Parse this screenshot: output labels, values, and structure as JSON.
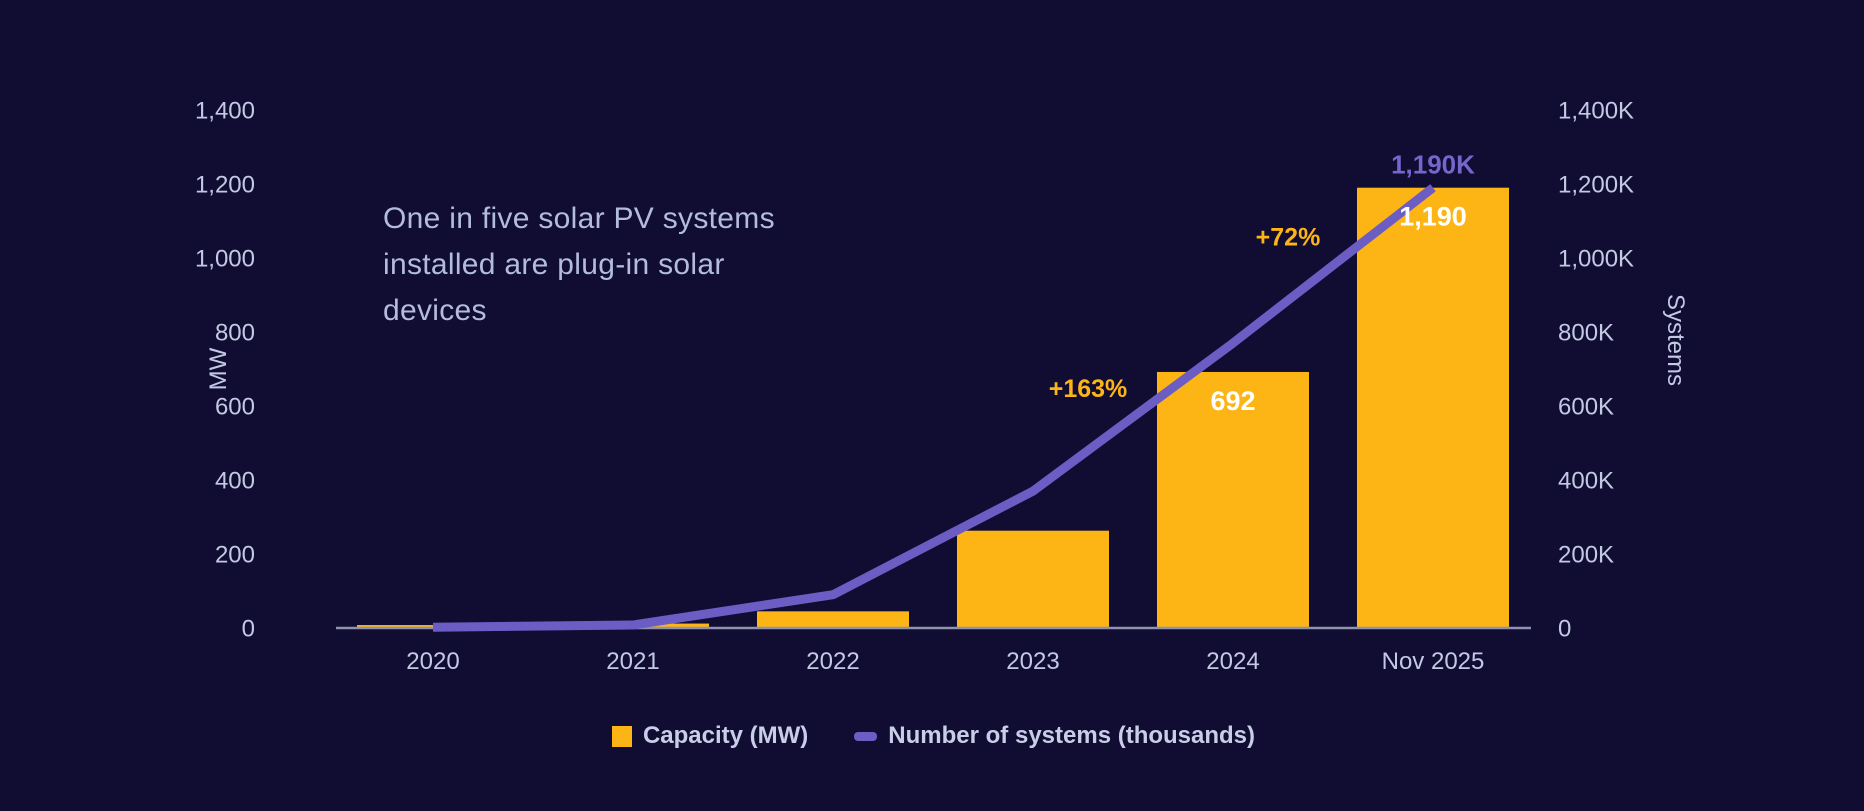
{
  "colors": {
    "background": "#100C32",
    "bar": "#FDB515",
    "line": "#6C5DC5",
    "axis_line": "#8E92AC",
    "tick_label": "#C3C9E3",
    "title_text": "#B3BCDE",
    "legend_text": "#C9CEE8",
    "bar_value_label": "#FFFFFF",
    "growth_label": "#FDB515",
    "line_value_label": "#7466CB"
  },
  "title": "One in five solar PV systems\ninstalled are plug-in solar\ndevices",
  "left_axis": {
    "label": "MW",
    "ticks": [
      "0",
      "200",
      "400",
      "600",
      "800",
      "1,000",
      "1,200",
      "1,400"
    ]
  },
  "right_axis": {
    "label": "Systems",
    "ticks": [
      "0",
      "200K",
      "400K",
      "600K",
      "800K",
      "1,000K",
      "1,200K",
      "1,400K"
    ]
  },
  "legend": {
    "items": [
      {
        "label": "Capacity (MW)",
        "swatch": "square"
      },
      {
        "label": "Number of systems (thousands)",
        "swatch": "dash"
      }
    ]
  },
  "chart_data": {
    "type": "combo-bar-line",
    "categories": [
      "2020",
      "2021",
      "2022",
      "2023",
      "2024",
      "Nov 2025"
    ],
    "series": [
      {
        "name": "Capacity (MW)",
        "type": "bar",
        "axis": "left",
        "color": "#FDB515",
        "values": [
          8,
          12,
          45,
          263,
          692,
          1190
        ]
      },
      {
        "name": "Number of systems (thousands)",
        "type": "line",
        "axis": "right",
        "color": "#6C5DC5",
        "values": [
          2,
          8,
          90,
          370,
          770,
          1190
        ]
      }
    ],
    "left_ylabel": "MW",
    "right_ylabel": "Systems",
    "left_ylim": [
      0,
      1400
    ],
    "right_ylim": [
      0,
      1400
    ],
    "tick_step": 200,
    "grid": false,
    "legend_position": "bottom",
    "annotations": [
      {
        "text": "+163%",
        "kind": "growth",
        "between": [
          "2023",
          "2024"
        ],
        "refers_to": "Capacity (MW)"
      },
      {
        "text": "+72%",
        "kind": "growth",
        "between": [
          "2024",
          "Nov 2025"
        ],
        "refers_to": "Capacity (MW)"
      },
      {
        "text": "692",
        "kind": "bar-value",
        "category": "2024"
      },
      {
        "text": "1,190",
        "kind": "bar-value",
        "category": "Nov 2025"
      },
      {
        "text": "1,190K",
        "kind": "line-value",
        "category": "Nov 2025"
      }
    ]
  }
}
